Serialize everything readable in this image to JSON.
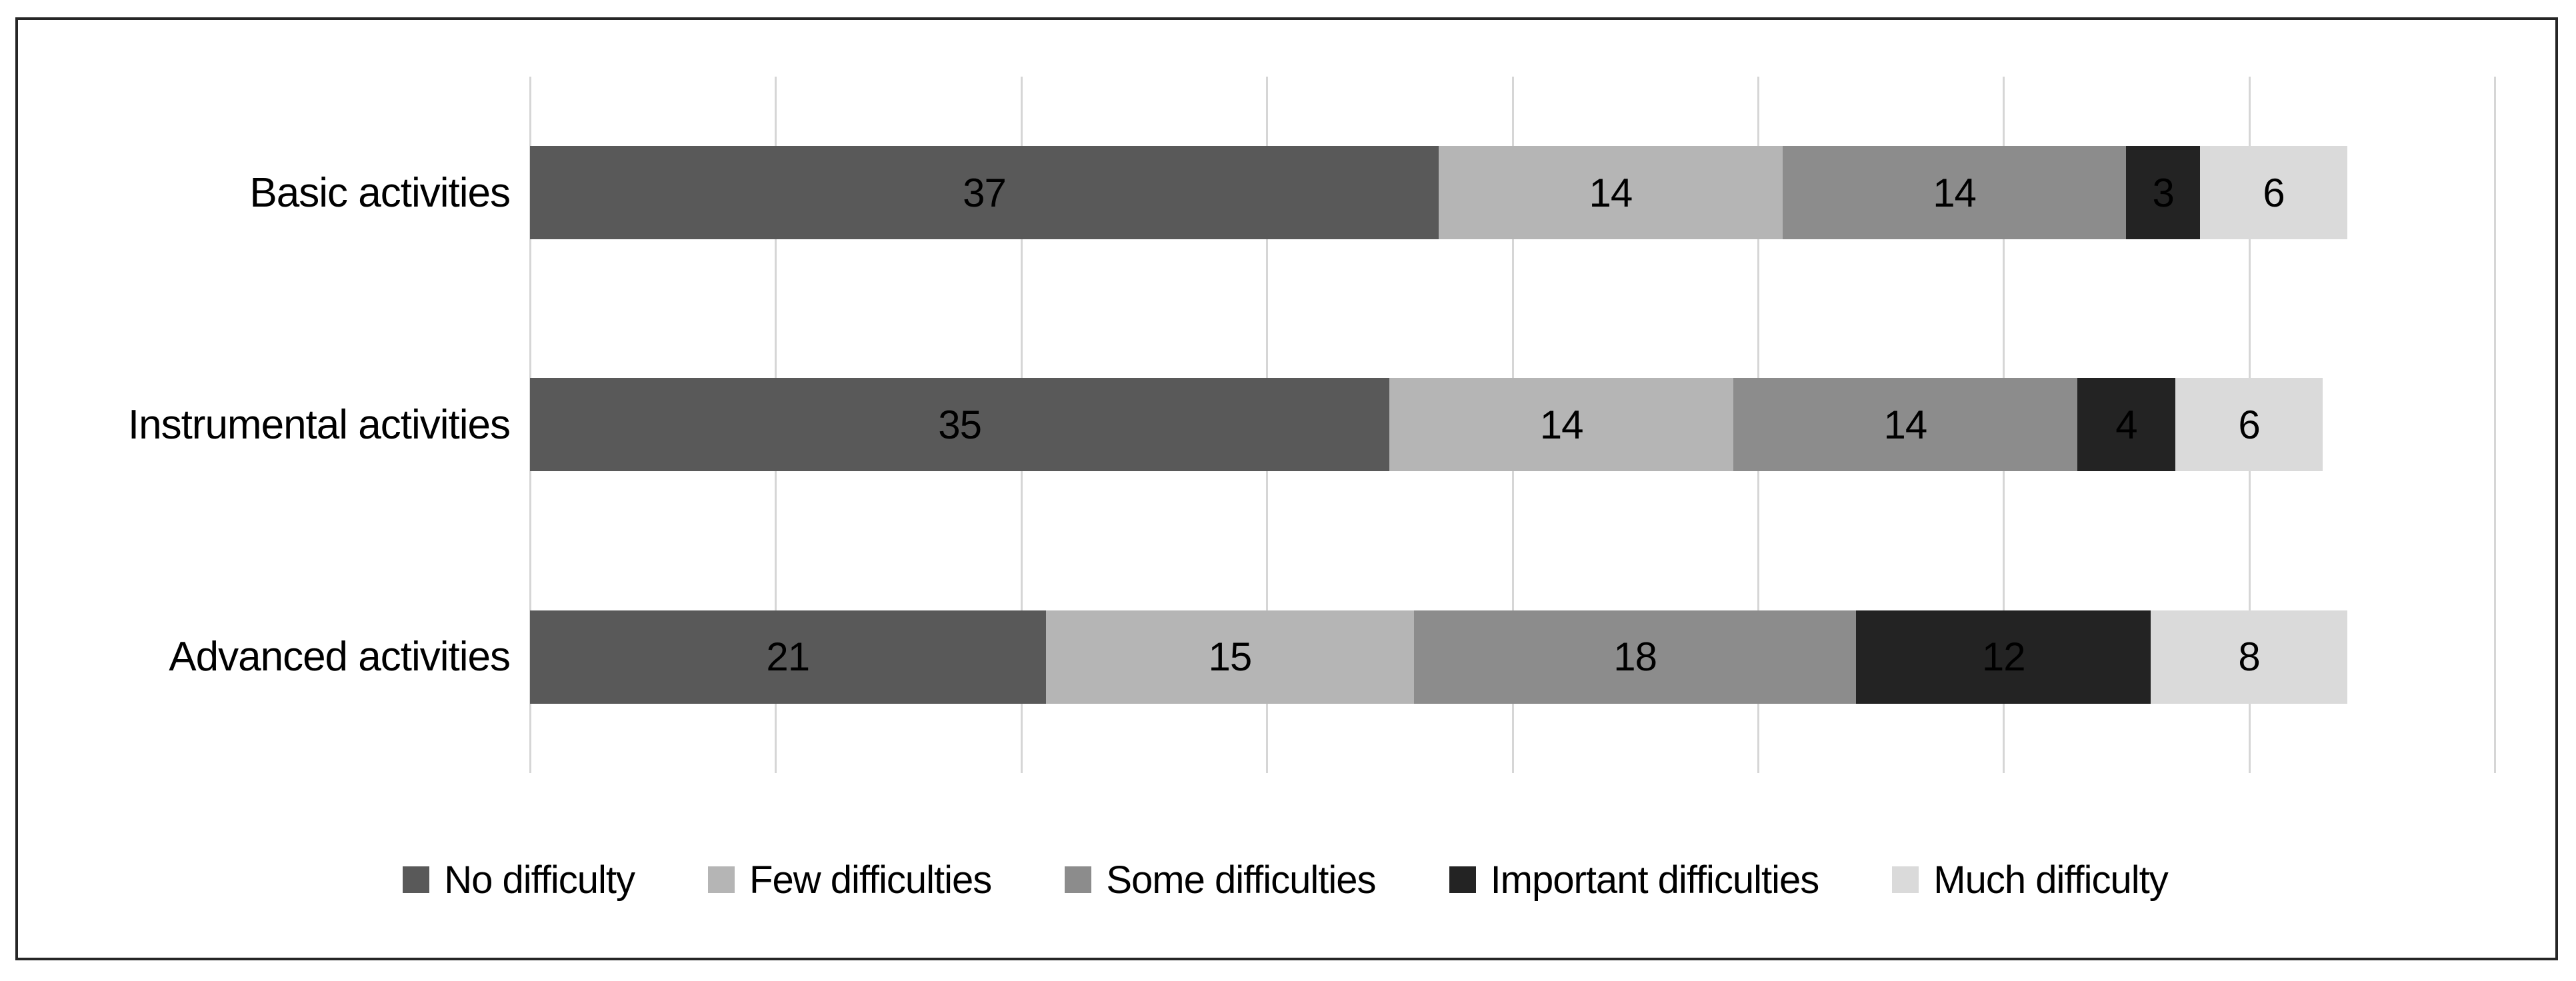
{
  "figure": {
    "background": "#ffffff",
    "border_color": "#262626",
    "text_color": "#000000"
  },
  "chart_data": {
    "type": "bar",
    "orientation": "horizontal",
    "stacked": true,
    "title": "",
    "xlabel": "",
    "ylabel": "",
    "categories": [
      "Basic activities",
      "Instrumental activities",
      "Advanced activities"
    ],
    "series": [
      {
        "name": "No difficulty",
        "color": "#595959",
        "values": [
          37,
          35,
          21
        ]
      },
      {
        "name": "Few difficulties",
        "color": "#b5b5b5",
        "values": [
          14,
          14,
          15
        ]
      },
      {
        "name": "Some difficulties",
        "color": "#8c8c8c",
        "values": [
          14,
          14,
          18
        ]
      },
      {
        "name": "Important difficulties",
        "color": "#232323",
        "values": [
          3,
          4,
          12
        ]
      },
      {
        "name": "Much difficulty",
        "color": "#dadada",
        "values": [
          6,
          6,
          8
        ]
      }
    ],
    "totals": [
      74,
      73,
      74
    ],
    "xlim": [
      0,
      80
    ],
    "gridline_step": 10,
    "grid": true,
    "gridline_color": "#d6d6d6",
    "data_labels": true,
    "data_label_color": "#000000",
    "legend_position": "bottom"
  }
}
